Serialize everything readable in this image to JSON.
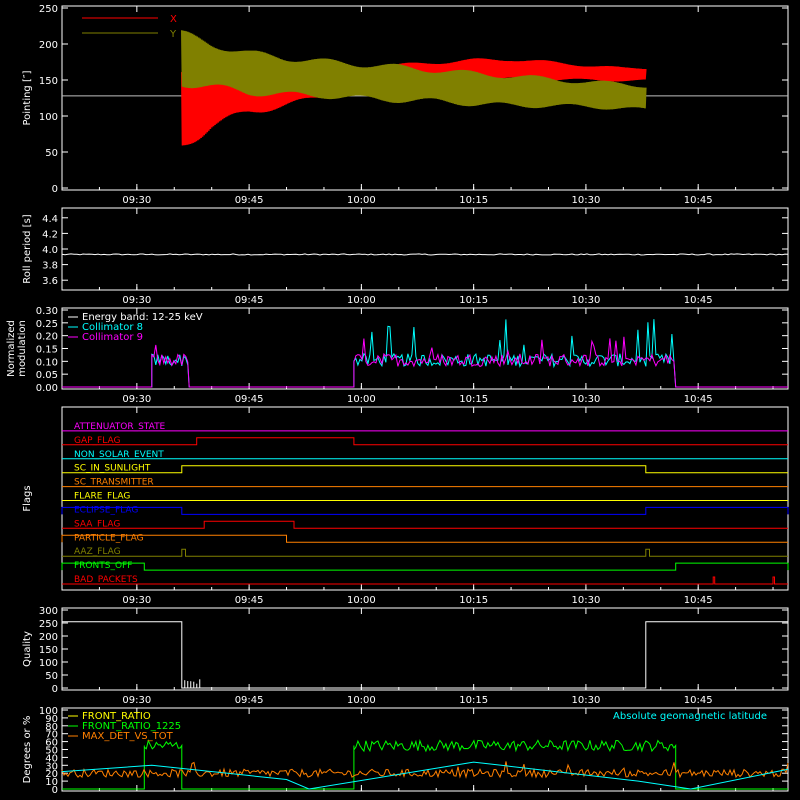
{
  "chart_data": [
    {
      "type": "line",
      "ylabel": "Pointing [″]",
      "ylim": [
        0,
        250
      ],
      "yticks": [
        "0",
        "50",
        "100",
        "150",
        "200",
        "250"
      ],
      "xticks": [
        "09:30",
        "09:45",
        "10:00",
        "10:15",
        "10:30",
        "10:45"
      ],
      "xlim_minutes": [
        9.333,
        10.95
      ],
      "series": [
        {
          "name": "X",
          "color": "#ff0000",
          "x": [
            "09:36",
            "09:40",
            "09:45",
            "09:50",
            "09:55",
            "10:00",
            "10:05",
            "10:10",
            "10:15",
            "10:20",
            "10:25",
            "10:30",
            "10:35",
            "10:38"
          ],
          "mid": [
            110,
            125,
            135,
            140,
            145,
            150,
            155,
            160,
            163,
            165,
            163,
            160,
            158,
            158
          ],
          "amp": [
            60,
            45,
            35,
            28,
            22,
            18,
            18,
            17,
            17,
            16,
            14,
            12,
            10,
            10
          ]
        },
        {
          "name": "Y",
          "color": "#808000",
          "x": [
            "09:36",
            "09:40",
            "09:45",
            "09:50",
            "09:55",
            "10:00",
            "10:05",
            "10:10",
            "10:15",
            "10:20",
            "10:25",
            "10:30",
            "10:35",
            "10:38"
          ],
          "mid": [
            180,
            170,
            160,
            155,
            152,
            148,
            145,
            142,
            138,
            135,
            133,
            130,
            128,
            125
          ],
          "amp": [
            40,
            35,
            32,
            30,
            28,
            28,
            27,
            25,
            25,
            24,
            22,
            20,
            20,
            20
          ]
        }
      ],
      "reference_line": 128
    },
    {
      "type": "line",
      "ylabel": "Roll period [s]",
      "ylim": [
        3.5,
        4.5
      ],
      "yticks": [
        "3.6",
        "3.8",
        "4.0",
        "4.2",
        "4.4"
      ],
      "xticks": [
        "09:30",
        "09:45",
        "10:00",
        "10:15",
        "10:30",
        "10:45"
      ],
      "series": [
        {
          "name": "",
          "color": "#ffffff",
          "x": [
            "09:20",
            "10:57"
          ],
          "y": [
            3.93,
            3.93
          ]
        }
      ]
    },
    {
      "type": "line",
      "ylabel": "Normalized modulation",
      "ylim": [
        0,
        0.3
      ],
      "yticks": [
        "0.00",
        "0.05",
        "0.10",
        "0.15",
        "0.20",
        "0.25",
        "0.30"
      ],
      "xticks": [
        "09:30",
        "09:45",
        "10:00",
        "10:15",
        "10:30",
        "10:45"
      ],
      "legend": [
        "Energy band: 12-25 keV",
        "Collimator 8",
        "Collimator 9"
      ],
      "series": [
        {
          "name": "Collimator 8",
          "color": "#00ffff",
          "segments": [
            [
              "09:32",
              "09:37"
            ],
            [
              "09:59",
              "10:42"
            ]
          ],
          "base": 0.1,
          "peak": 0.27
        },
        {
          "name": "Collimator 9",
          "color": "#ff00ff",
          "segments": [
            [
              "09:32",
              "09:37"
            ],
            [
              "09:59",
              "10:42"
            ]
          ],
          "base": 0.1,
          "peak": 0.2
        }
      ]
    },
    {
      "type": "line",
      "ylabel": "Flags",
      "xticks": [
        "09:30",
        "09:45",
        "10:00",
        "10:15",
        "10:30",
        "10:45"
      ],
      "flags": [
        {
          "name": "ATTENUATOR_STATE",
          "color": "#ff00ff",
          "high": []
        },
        {
          "name": "GAP_FLAG",
          "color": "#ff0000",
          "high": [
            [
              "09:38",
              "09:59"
            ]
          ]
        },
        {
          "name": "NON_SOLAR_EVENT",
          "color": "#00ffff",
          "high": []
        },
        {
          "name": "SC_IN_SUNLIGHT",
          "color": "#ffff00",
          "high": [
            [
              "09:36",
              "10:38"
            ]
          ]
        },
        {
          "name": "SC_TRANSMITTER",
          "color": "#ff8000",
          "high": []
        },
        {
          "name": "FLARE_FLAG",
          "color": "#ffff00",
          "high": []
        },
        {
          "name": "ECLIPSE_FLAG",
          "color": "#0000ff",
          "high": [
            [
              "09:20",
              "09:36"
            ],
            [
              "10:38",
              "10:57"
            ]
          ]
        },
        {
          "name": "SAA_FLAG",
          "color": "#ff0000",
          "high": [
            [
              "09:39",
              "09:51"
            ]
          ]
        },
        {
          "name": "PARTICLE_FLAG",
          "color": "#ff8000",
          "high": [
            [
              "09:20",
              "09:50"
            ]
          ]
        },
        {
          "name": "AAZ_FLAG",
          "color": "#808000",
          "high": [
            [
              "09:36",
              "09:36.5"
            ],
            [
              "10:38",
              "10:38.5"
            ]
          ]
        },
        {
          "name": "FRONTS_OFF",
          "color": "#00ff00",
          "high": [
            [
              "09:20",
              "09:31"
            ],
            [
              "10:42",
              "10:57"
            ]
          ]
        },
        {
          "name": "BAD_PACKETS",
          "color": "#ff0000",
          "high": [
            [
              "10:47",
              "10:47.2"
            ],
            [
              "10:55",
              "10:55.2"
            ]
          ]
        }
      ]
    },
    {
      "type": "line",
      "ylabel": "Quality",
      "ylim": [
        0,
        300
      ],
      "yticks": [
        "0",
        "50",
        "100",
        "150",
        "200",
        "250",
        "300"
      ],
      "xticks": [
        "09:30",
        "09:45",
        "10:00",
        "10:15",
        "10:30",
        "10:45"
      ],
      "series": [
        {
          "name": "",
          "color": "#ffffff",
          "x": [
            "09:20",
            "09:36",
            "09:36",
            "10:38",
            "10:38",
            "10:57"
          ],
          "y": [
            255,
            255,
            0,
            0,
            255,
            255
          ]
        }
      ]
    },
    {
      "type": "line",
      "ylabel": "Degrees or %",
      "ylim": [
        0,
        100
      ],
      "yticks": [
        "0",
        "10",
        "20",
        "30",
        "40",
        "50",
        "60",
        "70",
        "80",
        "90",
        "100"
      ],
      "xticks": [
        "09:30",
        "09:45",
        "10:00",
        "10:15",
        "10:30",
        "10:45"
      ],
      "legend": [
        "FRONT_RATIO",
        "FRONT_RATIO_1225",
        "MAX_DET_VS_TOT"
      ],
      "annotation": "Absolute geomagnetic latitude",
      "series": [
        {
          "name": "FRONT_RATIO",
          "color": "#ffff00"
        },
        {
          "name": "FRONT_RATIO_1225",
          "color": "#00ff00",
          "segments": [
            [
              "09:31",
              "09:36"
            ],
            [
              "09:59",
              "10:42"
            ]
          ],
          "level": 55
        },
        {
          "name": "MAX_DET_VS_TOT",
          "color": "#ff8000",
          "level": 20
        },
        {
          "name": "Absolute geomagnetic latitude",
          "color": "#00ffff",
          "x": [
            "09:20",
            "09:32",
            "09:50",
            "09:53",
            "10:15",
            "10:37",
            "10:44",
            "10:57"
          ],
          "y": [
            22,
            30,
            12,
            0,
            34,
            10,
            0,
            25
          ]
        }
      ]
    }
  ]
}
